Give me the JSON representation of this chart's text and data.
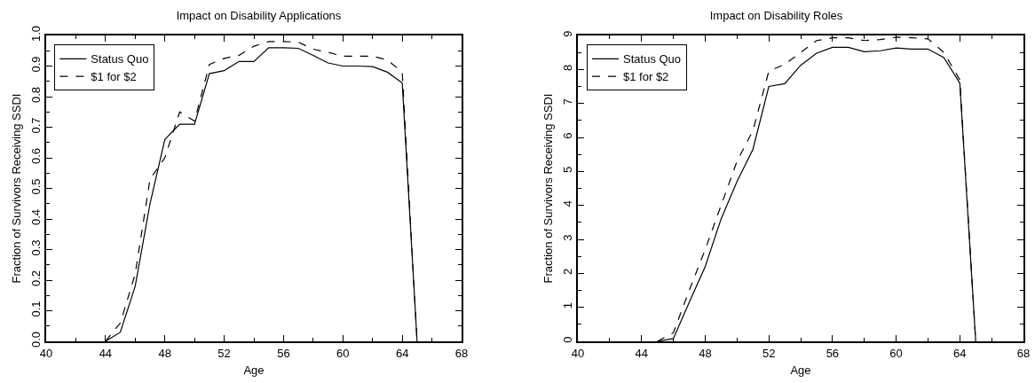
{
  "chart_data": [
    {
      "type": "line",
      "title": "Impact on Disability Applications",
      "xlabel": "Age",
      "ylabel": "Fraction of Survivors Receiving SSDI",
      "x": [
        44,
        45,
        46,
        47,
        48,
        49,
        50,
        51,
        52,
        53,
        54,
        55,
        56,
        57,
        58,
        59,
        60,
        61,
        62,
        63,
        64,
        65
      ],
      "series": [
        {
          "name": "Status Quo",
          "color": "#000000",
          "line_style": "solid",
          "values": [
            0,
            0.03,
            0.18,
            0.45,
            0.66,
            0.71,
            0.71,
            0.875,
            0.885,
            0.915,
            0.915,
            0.96,
            0.96,
            0.958,
            0.935,
            0.91,
            0.9,
            0.9,
            0.898,
            0.88,
            0.845,
            0
          ]
        },
        {
          "name": "$1 for $2",
          "color": "#000000",
          "line_style": "dashed",
          "values": [
            0,
            0.06,
            0.22,
            0.53,
            0.6,
            0.75,
            0.72,
            0.905,
            0.925,
            0.935,
            0.965,
            0.98,
            0.98,
            0.978,
            0.955,
            0.945,
            0.932,
            0.932,
            0.932,
            0.92,
            0.88,
            0
          ]
        }
      ],
      "xlim": [
        40,
        68
      ],
      "xticks": [
        40,
        44,
        48,
        52,
        56,
        60,
        64,
        68
      ],
      "ylim": [
        0,
        1
      ],
      "yticks": [
        {
          "value": 0,
          "label": "0.0"
        },
        0.1,
        0.2,
        0.3,
        0.4,
        0.5,
        0.6,
        0.7,
        0.8,
        0.9,
        {
          "value": 1,
          "label": "1.0"
        }
      ],
      "grid": false,
      "legend": "top left"
    },
    {
      "type": "line",
      "title": "Impact on Disability Roles",
      "xlabel": "Age",
      "ylabel": "Fraction of Survivors Receiving SSDI",
      "x": [
        45,
        46,
        47,
        48,
        49,
        50,
        51,
        52,
        53,
        54,
        55,
        56,
        57,
        58,
        59,
        60,
        61,
        62,
        63,
        64,
        65
      ],
      "series": [
        {
          "name": "Status Quo",
          "color": "#000000",
          "line_style": "solid",
          "values": [
            0,
            0.08,
            1.15,
            2.2,
            3.6,
            4.7,
            5.65,
            7.5,
            7.58,
            8.12,
            8.48,
            8.65,
            8.65,
            8.52,
            8.55,
            8.63,
            8.6,
            8.6,
            8.35,
            7.6,
            0
          ]
        },
        {
          "name": "$1 for $2",
          "color": "#000000",
          "line_style": "dashed",
          "values": [
            0,
            0.25,
            1.5,
            2.7,
            4.0,
            5.3,
            6.2,
            7.95,
            8.15,
            8.5,
            8.85,
            8.93,
            8.93,
            8.85,
            8.88,
            8.95,
            8.93,
            8.9,
            8.5,
            7.7,
            0
          ]
        }
      ],
      "xlim": [
        40,
        68
      ],
      "xticks": [
        40,
        44,
        48,
        52,
        56,
        60,
        64,
        68
      ],
      "ylim": [
        0,
        9
      ],
      "yticks": [
        0,
        1,
        2,
        3,
        4,
        5,
        6,
        7,
        8,
        9
      ],
      "grid": false,
      "legend": "top left"
    }
  ]
}
